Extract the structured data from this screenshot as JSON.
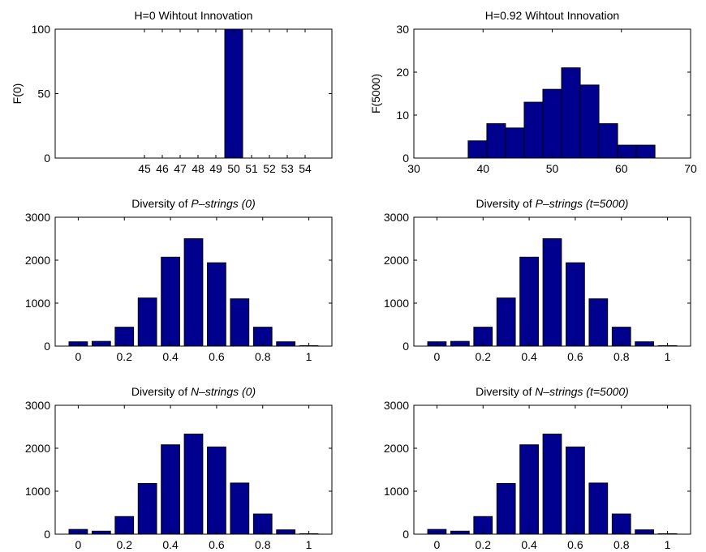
{
  "colors": {
    "bar_fill": "#00008F",
    "bar_edge": "#000000",
    "axis": "#000000"
  },
  "chart_data": [
    {
      "type": "bar",
      "title": "H=0  Wihtout Innovation",
      "ylabel": "F(0)",
      "xlim": [
        40,
        55.5
      ],
      "ylim": [
        0,
        100
      ],
      "bar_width": 1,
      "x": [
        50
      ],
      "values": [
        100
      ],
      "xticks": [
        45,
        46,
        47,
        48,
        49,
        50,
        51,
        52,
        53,
        54
      ],
      "yticks": [
        0,
        50,
        100
      ]
    },
    {
      "type": "bar",
      "title": "H=0.92  Wihtout Innovation",
      "ylabel": "F(5000)",
      "xlim": [
        30,
        70
      ],
      "ylim": [
        0,
        30
      ],
      "bar_width": 2.7,
      "x": [
        39.2,
        41.9,
        44.6,
        47.3,
        50.0,
        52.7,
        55.4,
        58.1,
        60.8,
        63.5
      ],
      "values": [
        4,
        8,
        7,
        13,
        16,
        21,
        17,
        8,
        3,
        3
      ],
      "xticks": [
        30,
        40,
        50,
        60,
        70
      ],
      "yticks": [
        0,
        10,
        20,
        30
      ]
    },
    {
      "type": "bar",
      "title_parts": [
        "Diversity of ",
        "P–strings (0)"
      ],
      "ylabel": "",
      "xlim": [
        -0.1,
        1.1
      ],
      "ylim": [
        0,
        3000
      ],
      "bar_width": 0.08,
      "x": [
        0,
        0.1,
        0.2,
        0.3,
        0.4,
        0.5,
        0.6,
        0.7,
        0.8,
        0.9,
        1.0
      ],
      "values": [
        100,
        110,
        440,
        1120,
        2070,
        2500,
        1940,
        1100,
        440,
        100,
        10
      ],
      "xticks": [
        0,
        0.2,
        0.4,
        0.6,
        0.8,
        1
      ],
      "yticks": [
        0,
        1000,
        2000,
        3000
      ]
    },
    {
      "type": "bar",
      "title_parts": [
        "Diversity of ",
        "P–strings (t=5000)"
      ],
      "ylabel": "",
      "xlim": [
        -0.1,
        1.1
      ],
      "ylim": [
        0,
        3000
      ],
      "bar_width": 0.08,
      "x": [
        0,
        0.1,
        0.2,
        0.3,
        0.4,
        0.5,
        0.6,
        0.7,
        0.8,
        0.9,
        1.0
      ],
      "values": [
        100,
        110,
        440,
        1120,
        2070,
        2500,
        1940,
        1100,
        440,
        100,
        10
      ],
      "xticks": [
        0,
        0.2,
        0.4,
        0.6,
        0.8,
        1
      ],
      "yticks": [
        0,
        1000,
        2000,
        3000
      ]
    },
    {
      "type": "bar",
      "title_parts": [
        "Diversity of ",
        "N–strings (0)"
      ],
      "ylabel": "",
      "xlim": [
        -0.1,
        1.1
      ],
      "ylim": [
        0,
        3000
      ],
      "bar_width": 0.08,
      "x": [
        0,
        0.1,
        0.2,
        0.3,
        0.4,
        0.5,
        0.6,
        0.7,
        0.8,
        0.9,
        1.0
      ],
      "values": [
        110,
        70,
        410,
        1180,
        2080,
        2330,
        2030,
        1190,
        470,
        100,
        10
      ],
      "xticks": [
        0,
        0.2,
        0.4,
        0.6,
        0.8,
        1
      ],
      "yticks": [
        0,
        1000,
        2000,
        3000
      ]
    },
    {
      "type": "bar",
      "title_parts": [
        "Diversity of ",
        "N–strings (t=5000)"
      ],
      "ylabel": "",
      "xlim": [
        -0.1,
        1.1
      ],
      "ylim": [
        0,
        3000
      ],
      "bar_width": 0.08,
      "x": [
        0,
        0.1,
        0.2,
        0.3,
        0.4,
        0.5,
        0.6,
        0.7,
        0.8,
        0.9,
        1.0
      ],
      "values": [
        110,
        70,
        410,
        1180,
        2080,
        2330,
        2030,
        1190,
        470,
        100,
        10
      ],
      "xticks": [
        0,
        0.2,
        0.4,
        0.6,
        0.8,
        1
      ],
      "yticks": [
        0,
        1000,
        2000,
        3000
      ]
    }
  ]
}
